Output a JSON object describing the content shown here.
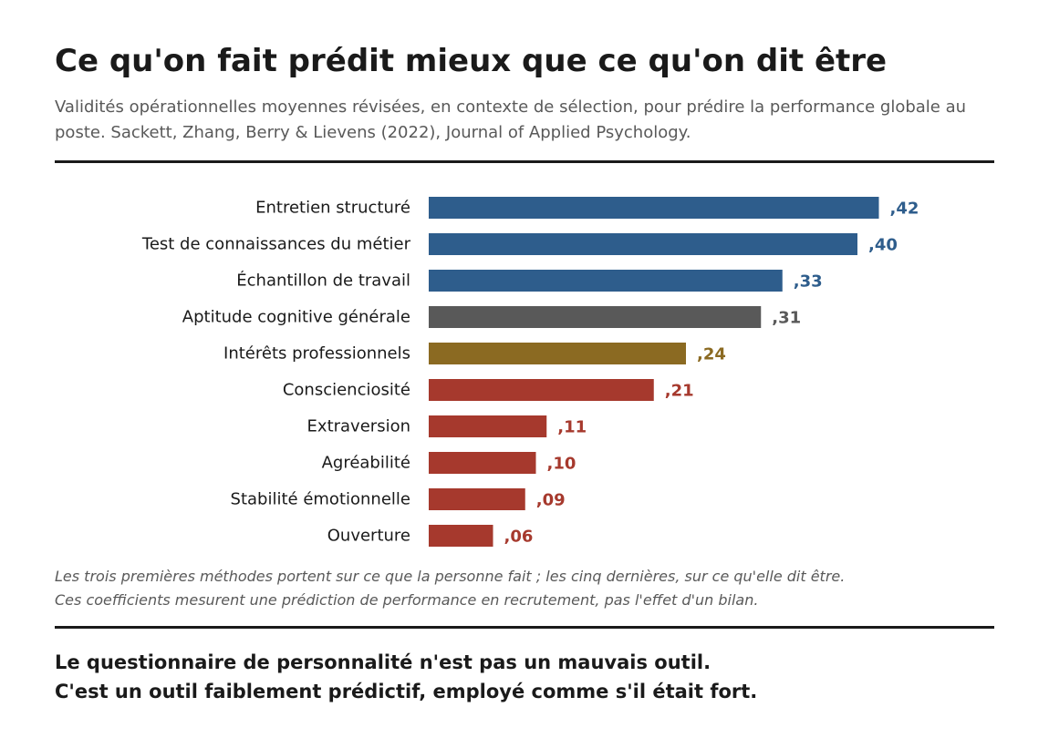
{
  "title": "Ce qu'on fait prédit mieux que ce qu'on dit être",
  "subtitle": "Validités opérationnelles moyennes révisées, en contexte de sélection, pour prédire la performance globale au poste. Sackett, Zhang, Berry & Lievens (2022), Journal of Applied Psychology.",
  "colors": {
    "do": "#2e5d8c",
    "cognitive": "#595959",
    "interests": "#8b6a22",
    "say": "#a6392d",
    "rule": "#1a1a1a"
  },
  "chart_data": {
    "type": "bar",
    "orientation": "horizontal",
    "categories": [
      "Entretien structuré",
      "Test de connaissances du métier",
      "Échantillon de travail",
      "Aptitude cognitive générale",
      "Intérêts professionnels",
      "Conscienciosité",
      "Extraversion",
      "Agréabilité",
      "Stabilité émotionnelle",
      "Ouverture"
    ],
    "values": [
      0.42,
      0.4,
      0.33,
      0.31,
      0.24,
      0.21,
      0.11,
      0.1,
      0.09,
      0.06
    ],
    "value_labels": [
      ",42",
      ",40",
      ",33",
      ",31",
      ",24",
      ",21",
      ",11",
      ",10",
      ",09",
      ",06"
    ],
    "bar_groups": [
      "do",
      "do",
      "do",
      "cognitive",
      "interests",
      "say",
      "say",
      "say",
      "say",
      "say"
    ],
    "xlim": [
      0,
      0.45
    ],
    "grid": false,
    "legend": "none"
  },
  "notes": {
    "line1": "Les trois premières méthodes portent sur ce que la personne fait ; les cinq dernières, sur ce qu'elle dit être.",
    "line2": "Ces coefficients mesurent une prédiction de performance en recrutement, pas l'effet d'un bilan."
  },
  "conclusion": {
    "line1": "Le questionnaire de personnalité n'est pas un mauvais outil.",
    "line2": "C'est un outil faiblement prédictif, employé comme s'il était fort."
  }
}
